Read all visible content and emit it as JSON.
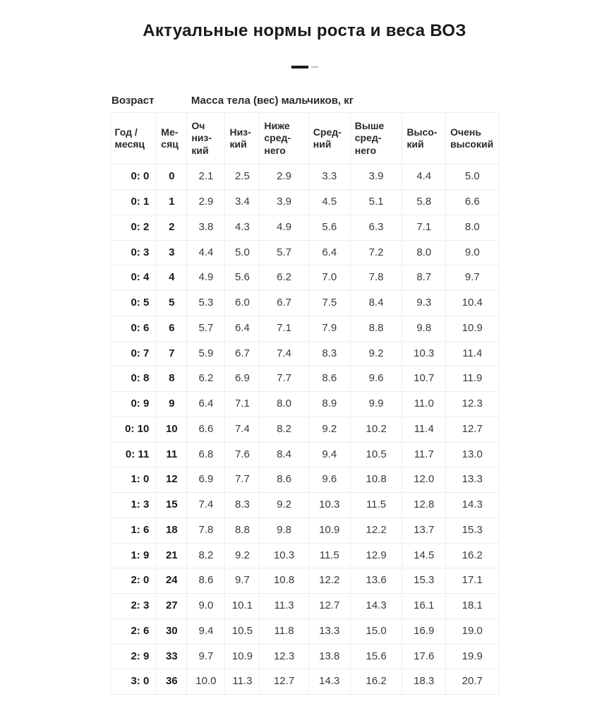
{
  "title": "Актуальные нормы роста и веса ВОЗ",
  "table": {
    "type": "table",
    "background_color": "#ffffff",
    "border_color": "#e8f0e8",
    "header_age": "Возраст",
    "header_mass": "Масса тела (вес) мальчиков, кг",
    "columns": [
      "Год / месяц",
      "Ме­сяц",
      "Оч низ­кий",
      "Низ­кий",
      "Ниже сред­него",
      "Сред­ний",
      "Выше сред­него",
      "Высо­кий",
      "Очень высо­кий"
    ],
    "rows": [
      {
        "age": "0: 0",
        "month": "0",
        "v": [
          "2.1",
          "2.5",
          "2.9",
          "3.3",
          "3.9",
          "4.4",
          "5.0"
        ]
      },
      {
        "age": "0: 1",
        "month": "1",
        "v": [
          "2.9",
          "3.4",
          "3.9",
          "4.5",
          "5.1",
          "5.8",
          "6.6"
        ]
      },
      {
        "age": "0: 2",
        "month": "2",
        "v": [
          "3.8",
          "4.3",
          "4.9",
          "5.6",
          "6.3",
          "7.1",
          "8.0"
        ]
      },
      {
        "age": "0: 3",
        "month": "3",
        "v": [
          "4.4",
          "5.0",
          "5.7",
          "6.4",
          "7.2",
          "8.0",
          "9.0"
        ]
      },
      {
        "age": "0: 4",
        "month": "4",
        "v": [
          "4.9",
          "5.6",
          "6.2",
          "7.0",
          "7.8",
          "8.7",
          "9.7"
        ]
      },
      {
        "age": "0: 5",
        "month": "5",
        "v": [
          "5.3",
          "6.0",
          "6.7",
          "7.5",
          "8.4",
          "9.3",
          "10.4"
        ]
      },
      {
        "age": "0: 6",
        "month": "6",
        "v": [
          "5.7",
          "6.4",
          "7.1",
          "7.9",
          "8.8",
          "9.8",
          "10.9"
        ]
      },
      {
        "age": "0: 7",
        "month": "7",
        "v": [
          "5.9",
          "6.7",
          "7.4",
          "8.3",
          "9.2",
          "10.3",
          "11.4"
        ]
      },
      {
        "age": "0: 8",
        "month": "8",
        "v": [
          "6.2",
          "6.9",
          "7.7",
          "8.6",
          "9.6",
          "10.7",
          "11.9"
        ]
      },
      {
        "age": "0: 9",
        "month": "9",
        "v": [
          "6.4",
          "7.1",
          "8.0",
          "8.9",
          "9.9",
          "11.0",
          "12.3"
        ]
      },
      {
        "age": "0: 10",
        "month": "10",
        "v": [
          "6.6",
          "7.4",
          "8.2",
          "9.2",
          "10.2",
          "11.4",
          "12.7"
        ]
      },
      {
        "age": "0: 11",
        "month": "11",
        "v": [
          "6.8",
          "7.6",
          "8.4",
          "9.4",
          "10.5",
          "11.7",
          "13.0"
        ]
      },
      {
        "age": "1: 0",
        "month": "12",
        "v": [
          "6.9",
          "7.7",
          "8.6",
          "9.6",
          "10.8",
          "12.0",
          "13.3"
        ]
      },
      {
        "age": "1: 3",
        "month": "15",
        "v": [
          "7.4",
          "8.3",
          "9.2",
          "10.3",
          "11.5",
          "12.8",
          "14.3"
        ]
      },
      {
        "age": "1: 6",
        "month": "18",
        "v": [
          "7.8",
          "8.8",
          "9.8",
          "10.9",
          "12.2",
          "13.7",
          "15.3"
        ]
      },
      {
        "age": "1: 9",
        "month": "21",
        "v": [
          "8.2",
          "9.2",
          "10.3",
          "11.5",
          "12.9",
          "14.5",
          "16.2"
        ]
      },
      {
        "age": "2: 0",
        "month": "24",
        "v": [
          "8.6",
          "9.7",
          "10.8",
          "12.2",
          "13.6",
          "15.3",
          "17.1"
        ]
      },
      {
        "age": "2: 3",
        "month": "27",
        "v": [
          "9.0",
          "10.1",
          "11.3",
          "12.7",
          "14.3",
          "16.1",
          "18.1"
        ]
      },
      {
        "age": "2: 6",
        "month": "30",
        "v": [
          "9.4",
          "10.5",
          "11.8",
          "13.3",
          "15.0",
          "16.9",
          "19.0"
        ]
      },
      {
        "age": "2: 9",
        "month": "33",
        "v": [
          "9.7",
          "10.9",
          "12.3",
          "13.8",
          "15.6",
          "17.6",
          "19.9"
        ]
      },
      {
        "age": "3: 0",
        "month": "36",
        "v": [
          "10.0",
          "11.3",
          "12.7",
          "14.3",
          "16.2",
          "18.3",
          "20.7"
        ]
      }
    ]
  },
  "styling": {
    "title_font_size": 24,
    "title_font_weight": 800,
    "title_color": "#1a1a1a",
    "body_font_size": 15,
    "subhead_font_size": 14,
    "cell_text_color": "#3a3a3a",
    "bold_text_color": "#1a1a1a",
    "divider_main_color": "#1a1a1a",
    "divider_accent_color": "#9fd89f"
  }
}
